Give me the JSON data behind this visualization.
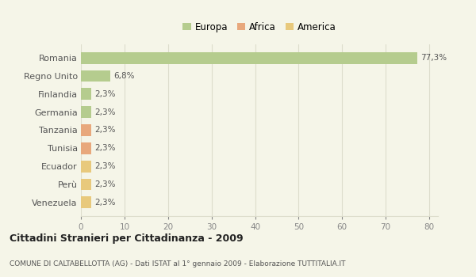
{
  "categories": [
    "Romania",
    "Regno Unito",
    "Finlandia",
    "Germania",
    "Tanzania",
    "Tunisia",
    "Ecuador",
    "Perù",
    "Venezuela"
  ],
  "values": [
    77.3,
    6.8,
    2.3,
    2.3,
    2.3,
    2.3,
    2.3,
    2.3,
    2.3
  ],
  "colors": [
    "#b5cc8e",
    "#b5cc8e",
    "#b5cc8e",
    "#b5cc8e",
    "#e8a87c",
    "#e8a87c",
    "#e8c97c",
    "#e8c97c",
    "#e8c97c"
  ],
  "labels": [
    "77,3%",
    "6,8%",
    "2,3%",
    "2,3%",
    "2,3%",
    "2,3%",
    "2,3%",
    "2,3%",
    "2,3%"
  ],
  "legend": [
    {
      "label": "Europa",
      "color": "#b5cc8e"
    },
    {
      "label": "Africa",
      "color": "#e8a87c"
    },
    {
      "label": "America",
      "color": "#e8c97c"
    }
  ],
  "title": "Cittadini Stranieri per Cittadinanza - 2009",
  "subtitle": "COMUNE DI CALTABELLOTTA (AG) - Dati ISTAT al 1° gennaio 2009 - Elaborazione TUTTITALIA.IT",
  "xlim": [
    0,
    82
  ],
  "xticks": [
    0,
    10,
    20,
    30,
    40,
    50,
    60,
    70,
    80
  ],
  "background_color": "#f5f5e8",
  "grid_color": "#ddddcc"
}
